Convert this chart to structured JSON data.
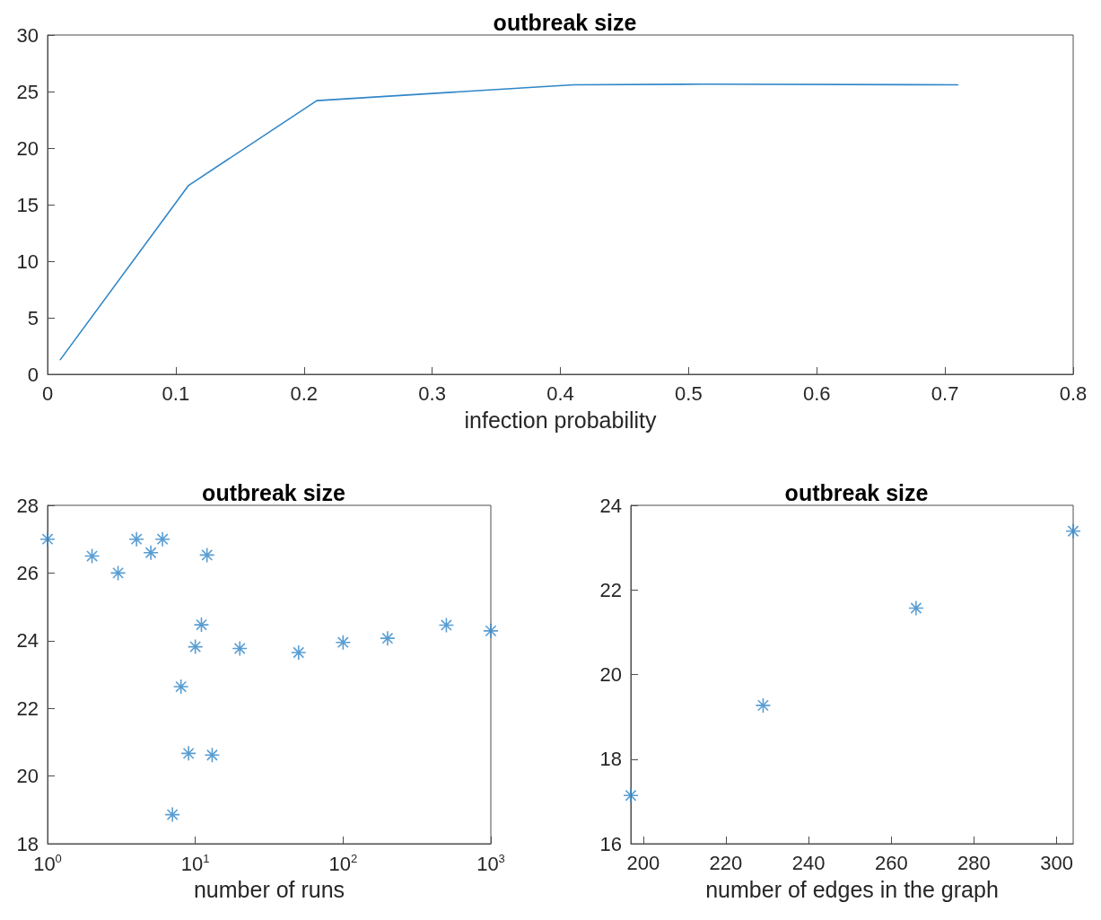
{
  "chart_data": [
    {
      "type": "line",
      "title": "outbreak size",
      "xlabel": "infection probability",
      "x": [
        0.01,
        0.11,
        0.21,
        0.41,
        0.51,
        0.71
      ],
      "series": [
        {
          "color": "#2f86c8",
          "values": [
            1.3,
            16.7,
            24.2,
            25.6,
            25.65,
            25.6
          ]
        }
      ],
      "xlim": [
        0,
        0.8
      ],
      "xticks": [
        0,
        0.1,
        0.2,
        0.3,
        0.4,
        0.5,
        0.6,
        0.7,
        0.8
      ],
      "ylim": [
        0,
        30
      ],
      "yticks": [
        0,
        5,
        10,
        15,
        20,
        25,
        30
      ],
      "grid": false,
      "marker": "none",
      "line_style": "solid"
    },
    {
      "type": "scatter",
      "title": "outbreak size",
      "xlabel": "number of runs",
      "x": [
        1,
        2,
        3,
        4,
        5,
        6,
        7,
        8,
        9,
        10,
        11,
        12,
        13,
        20,
        50,
        100,
        200,
        500,
        1000
      ],
      "series": [
        {
          "color": "#2f86c8",
          "values": [
            27,
            26.5,
            26,
            27,
            26.6,
            27,
            18.86,
            22.64,
            20.67,
            23.82,
            24.47,
            26.53,
            20.62,
            23.77,
            23.65,
            23.95,
            24.07,
            24.46,
            24.29
          ]
        }
      ],
      "log": "x",
      "xlim": [
        1,
        1000
      ],
      "xticks": [
        {
          "value": 1,
          "label": "10$^{0}$"
        },
        {
          "value": 10,
          "label": "10$^{1}$"
        },
        {
          "value": 100,
          "label": "10$^{2}$"
        },
        {
          "value": 1000,
          "label": "10$^{3}$"
        }
      ],
      "ylim": [
        18,
        28
      ],
      "yticks": [
        18,
        20,
        22,
        24,
        26,
        28
      ],
      "grid": false,
      "marker": "cross"
    },
    {
      "type": "scatter",
      "title": "outbreak size",
      "xlabel": "number of edges in the graph",
      "x": [
        197,
        229,
        266,
        304
      ],
      "series": [
        {
          "color": "#2f86c8",
          "values": [
            17.14,
            19.27,
            21.57,
            23.39
          ]
        }
      ],
      "xlim": [
        197,
        304
      ],
      "xticks": [
        200,
        220,
        240,
        260,
        280,
        300
      ],
      "ylim": [
        16,
        24
      ],
      "yticks": [
        16,
        18,
        20,
        22,
        24
      ],
      "grid": false,
      "marker": "cross"
    }
  ]
}
